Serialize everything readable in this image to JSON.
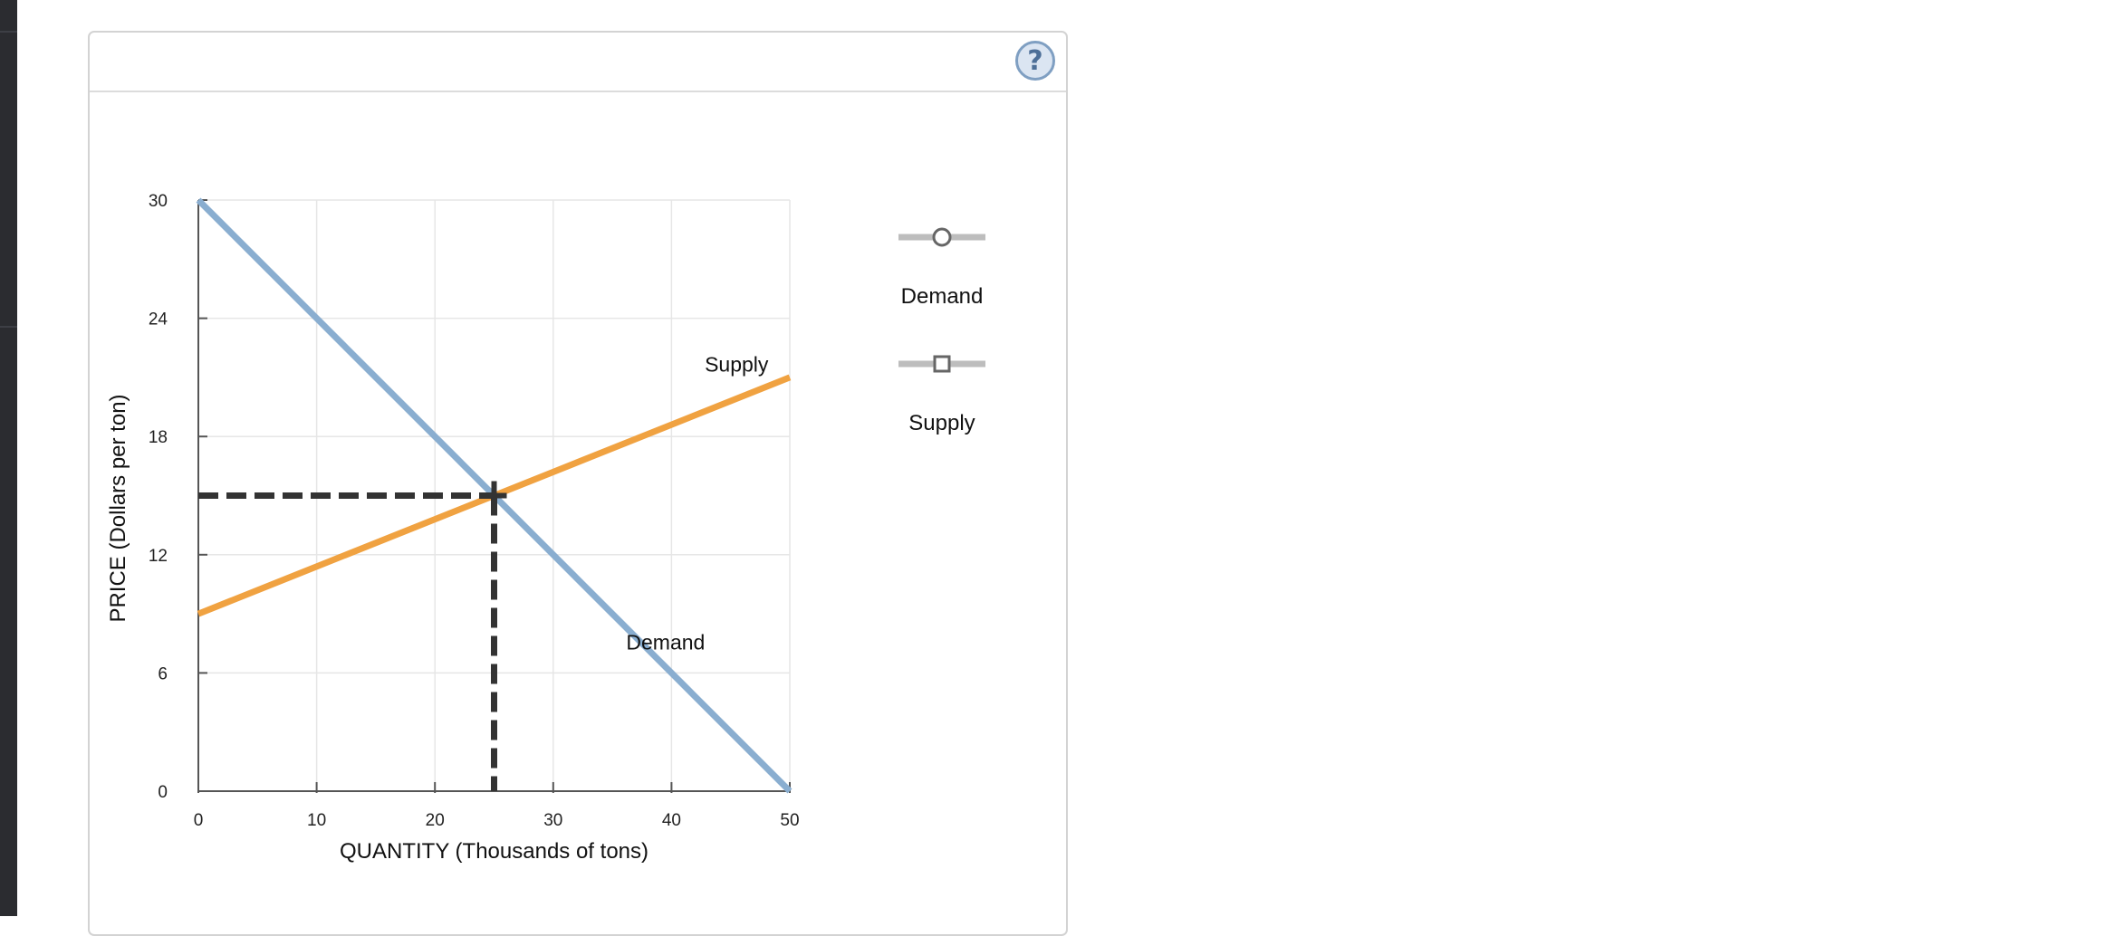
{
  "help": {
    "label": "?"
  },
  "legend": [
    {
      "label": "Demand",
      "marker": "circle"
    },
    {
      "label": "Supply",
      "marker": "square"
    }
  ],
  "colors": {
    "demand": "#8aaed0",
    "supply": "#f0a241",
    "dashed": "#333333",
    "grid": "#e6e6e6",
    "legend_line": "#bdbdbd"
  },
  "chart_data": {
    "type": "line",
    "xlabel": "QUANTITY (Thousands of tons)",
    "ylabel": "PRICE (Dollars per ton)",
    "xlim": [
      0,
      50
    ],
    "ylim": [
      0,
      30
    ],
    "xticks": [
      0,
      10,
      20,
      30,
      40,
      50
    ],
    "yticks": [
      0,
      6,
      12,
      18,
      24,
      30
    ],
    "grid": true,
    "series": [
      {
        "name": "Demand",
        "x": [
          0,
          50
        ],
        "y": [
          30,
          0
        ]
      },
      {
        "name": "Supply",
        "x": [
          0,
          50
        ],
        "y": [
          9,
          21
        ]
      }
    ],
    "annotations": [
      {
        "text": "Supply",
        "x": 45.5,
        "y": 21.3
      },
      {
        "text": "Demand",
        "x": 39.5,
        "y": 7.2
      }
    ],
    "equilibrium": {
      "x": 25,
      "y": 15
    }
  }
}
